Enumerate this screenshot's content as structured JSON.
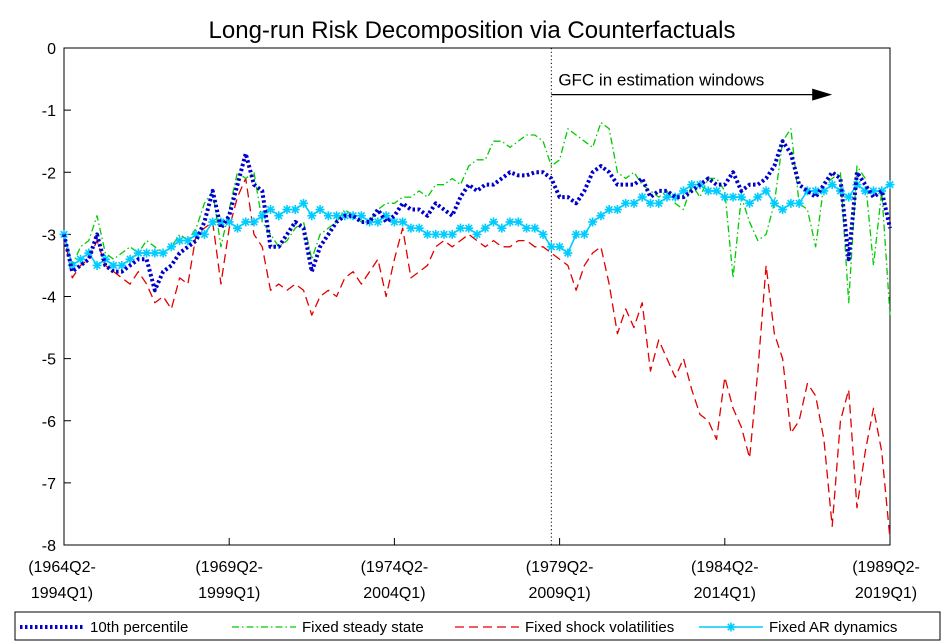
{
  "chart_data": {
    "type": "line",
    "title": "Long-run Risk Decomposition via Counterfactuals",
    "xlabel": "",
    "ylabel": "",
    "xlim": [
      0,
      100
    ],
    "ylim": [
      -8,
      0
    ],
    "yticks": [
      0,
      -1,
      -2,
      -3,
      -4,
      -5,
      -6,
      -7,
      -8
    ],
    "xticks": [
      {
        "x": 0,
        "line1": "(1964Q2-",
        "line2": "1994Q1)"
      },
      {
        "x": 20,
        "line1": "(1969Q2-",
        "line2": "1999Q1)"
      },
      {
        "x": 40,
        "line1": "(1974Q2-",
        "line2": "2004Q1)"
      },
      {
        "x": 60,
        "line1": "(1979Q2-",
        "line2": "2009Q1)"
      },
      {
        "x": 80,
        "line1": "(1984Q2-",
        "line2": "2014Q1)"
      },
      {
        "x": 100,
        "line1": "(1989Q2-",
        "line2": "2019Q1)"
      }
    ],
    "grid": false,
    "vline": {
      "x": 59,
      "style": "dotted"
    },
    "annotation": {
      "text": "GFC in estimation windows",
      "arrow_from_x": 59,
      "arrow_to_x": 93,
      "arrow_y": -0.75
    },
    "legend": {
      "placement": "bottom-outside"
    },
    "series": [
      {
        "name": "10th percentile",
        "color": "#0000cc",
        "style": "dotted-thick",
        "x": [
          0,
          1,
          2,
          3,
          4,
          5,
          6,
          7,
          8,
          9,
          10,
          11,
          12,
          13,
          14,
          15,
          16,
          17,
          18,
          19,
          20,
          21,
          22,
          23,
          24,
          25,
          26,
          27,
          28,
          29,
          30,
          31,
          32,
          33,
          34,
          35,
          36,
          37,
          38,
          39,
          40,
          41,
          42,
          43,
          44,
          45,
          46,
          47,
          48,
          49,
          50,
          51,
          52,
          53,
          54,
          55,
          56,
          57,
          58,
          59,
          60,
          61,
          62,
          63,
          64,
          65,
          66,
          67,
          68,
          69,
          70,
          71,
          72,
          73,
          74,
          75,
          76,
          77,
          78,
          79,
          80,
          81,
          82,
          83,
          84,
          85,
          86,
          87,
          88,
          89,
          90,
          91,
          92,
          93,
          94,
          95,
          96,
          97,
          98,
          99,
          100
        ],
        "y": [
          -3.0,
          -3.6,
          -3.5,
          -3.4,
          -3.0,
          -3.5,
          -3.6,
          -3.6,
          -3.5,
          -3.4,
          -3.4,
          -3.9,
          -3.6,
          -3.5,
          -3.3,
          -3.2,
          -3.1,
          -2.8,
          -2.3,
          -2.9,
          -2.7,
          -2.2,
          -1.7,
          -2.2,
          -2.3,
          -3.2,
          -3.2,
          -3.0,
          -2.8,
          -2.9,
          -3.6,
          -3.2,
          -3.0,
          -2.8,
          -2.7,
          -2.7,
          -2.8,
          -2.8,
          -2.6,
          -2.8,
          -2.7,
          -2.5,
          -2.6,
          -2.6,
          -2.7,
          -2.5,
          -2.6,
          -2.7,
          -2.4,
          -2.2,
          -2.3,
          -2.2,
          -2.2,
          -2.1,
          -2.0,
          -2.05,
          -2.05,
          -2.0,
          -2.0,
          -2.1,
          -2.4,
          -2.4,
          -2.5,
          -2.3,
          -2.0,
          -1.9,
          -2.0,
          -2.2,
          -2.2,
          -2.2,
          -2.1,
          -2.4,
          -2.3,
          -2.3,
          -2.4,
          -2.4,
          -2.3,
          -2.2,
          -2.1,
          -2.2,
          -2.2,
          -2.0,
          -2.3,
          -2.2,
          -2.2,
          -2.1,
          -1.9,
          -1.5,
          -1.7,
          -2.2,
          -2.3,
          -2.4,
          -2.2,
          -2.0,
          -2.1,
          -3.4,
          -2.0,
          -2.2,
          -2.4,
          -2.3,
          -2.9
        ]
      },
      {
        "name": "Fixed steady state",
        "color": "#00cc00",
        "style": "dash-dot",
        "x": [
          0,
          1,
          2,
          3,
          4,
          5,
          6,
          7,
          8,
          9,
          10,
          11,
          12,
          13,
          14,
          15,
          16,
          17,
          18,
          19,
          20,
          21,
          22,
          23,
          24,
          25,
          26,
          27,
          28,
          29,
          30,
          31,
          32,
          33,
          34,
          35,
          36,
          37,
          38,
          39,
          40,
          41,
          42,
          43,
          44,
          45,
          46,
          47,
          48,
          49,
          50,
          51,
          52,
          53,
          54,
          55,
          56,
          57,
          58,
          59,
          60,
          61,
          62,
          63,
          64,
          65,
          66,
          67,
          68,
          69,
          70,
          71,
          72,
          73,
          74,
          75,
          76,
          77,
          78,
          79,
          80,
          81,
          82,
          83,
          84,
          85,
          86,
          87,
          88,
          89,
          90,
          91,
          92,
          93,
          94,
          95,
          96,
          97,
          98,
          99,
          100
        ],
        "y": [
          -3.0,
          -3.5,
          -3.2,
          -3.1,
          -2.7,
          -3.3,
          -3.4,
          -3.3,
          -3.2,
          -3.3,
          -3.1,
          -3.2,
          -3.3,
          -3.2,
          -3.0,
          -3.1,
          -2.9,
          -2.5,
          -2.3,
          -3.2,
          -2.6,
          -2.0,
          -2.1,
          -2.0,
          -2.8,
          -3.0,
          -3.2,
          -3.1,
          -2.9,
          -2.8,
          -3.4,
          -3.0,
          -2.9,
          -2.8,
          -2.6,
          -2.7,
          -2.8,
          -2.8,
          -2.6,
          -2.5,
          -2.5,
          -2.4,
          -2.4,
          -2.3,
          -2.4,
          -2.2,
          -2.2,
          -2.1,
          -2.2,
          -1.9,
          -1.8,
          -1.8,
          -1.5,
          -1.5,
          -1.6,
          -1.5,
          -1.4,
          -1.4,
          -1.5,
          -1.9,
          -1.8,
          -1.3,
          -1.4,
          -1.5,
          -1.6,
          -1.2,
          -1.3,
          -2.0,
          -2.1,
          -2.0,
          -2.2,
          -2.3,
          -2.4,
          -2.3,
          -2.5,
          -2.6,
          -2.2,
          -2.4,
          -2.1,
          -2.1,
          -2.3,
          -3.7,
          -2.4,
          -2.8,
          -3.1,
          -3.0,
          -2.5,
          -1.5,
          -1.3,
          -2.5,
          -2.6,
          -3.2,
          -2.2,
          -2.1,
          -2.0,
          -4.1,
          -1.9,
          -2.1,
          -3.5,
          -2.3,
          -4.3
        ]
      },
      {
        "name": "Fixed shock volatilities",
        "color": "#e00000",
        "style": "dashed",
        "x": [
          0,
          1,
          2,
          3,
          4,
          5,
          6,
          7,
          8,
          9,
          10,
          11,
          12,
          13,
          14,
          15,
          16,
          17,
          18,
          19,
          20,
          21,
          22,
          23,
          24,
          25,
          26,
          27,
          28,
          29,
          30,
          31,
          32,
          33,
          34,
          35,
          36,
          37,
          38,
          39,
          40,
          41,
          42,
          43,
          44,
          45,
          46,
          47,
          48,
          49,
          50,
          51,
          52,
          53,
          54,
          55,
          56,
          57,
          58,
          59,
          60,
          61,
          62,
          63,
          64,
          65,
          66,
          67,
          68,
          69,
          70,
          71,
          72,
          73,
          74,
          75,
          76,
          77,
          78,
          79,
          80,
          81,
          82,
          83,
          84,
          85,
          86,
          87,
          88,
          89,
          90,
          91,
          92,
          93,
          94,
          95,
          96,
          97,
          98,
          99,
          100
        ],
        "y": [
          -3.0,
          -3.7,
          -3.5,
          -3.4,
          -3.1,
          -3.5,
          -3.6,
          -3.7,
          -3.8,
          -3.6,
          -3.8,
          -4.1,
          -4.0,
          -4.2,
          -3.7,
          -3.8,
          -3.0,
          -2.9,
          -2.8,
          -3.8,
          -2.9,
          -2.4,
          -2.1,
          -3.0,
          -3.2,
          -3.9,
          -3.8,
          -3.9,
          -3.8,
          -3.9,
          -4.3,
          -4.0,
          -3.9,
          -4.0,
          -3.7,
          -3.6,
          -3.8,
          -3.6,
          -3.4,
          -4.0,
          -3.4,
          -2.9,
          -3.7,
          -3.6,
          -3.5,
          -3.2,
          -3.1,
          -3.2,
          -3.1,
          -3.0,
          -3.1,
          -3.2,
          -3.1,
          -3.2,
          -3.2,
          -3.1,
          -3.1,
          -3.2,
          -3.2,
          -3.3,
          -3.4,
          -3.5,
          -3.9,
          -3.5,
          -3.3,
          -3.2,
          -3.8,
          -4.6,
          -4.2,
          -4.5,
          -4.1,
          -5.2,
          -4.7,
          -5.0,
          -5.3,
          -5.0,
          -5.5,
          -5.9,
          -6.0,
          -6.3,
          -5.3,
          -5.8,
          -6.1,
          -6.6,
          -5.2,
          -3.5,
          -4.6,
          -5.0,
          -6.2,
          -6.0,
          -5.4,
          -5.6,
          -6.3,
          -7.7,
          -6.0,
          -5.5,
          -7.4,
          -6.5,
          -5.8,
          -6.5,
          -7.9
        ]
      },
      {
        "name": "Fixed AR dynamics",
        "color": "#00ccff",
        "style": "solid-star",
        "x": [
          0,
          1,
          2,
          3,
          4,
          5,
          6,
          7,
          8,
          9,
          10,
          11,
          12,
          13,
          14,
          15,
          16,
          17,
          18,
          19,
          20,
          21,
          22,
          23,
          24,
          25,
          26,
          27,
          28,
          29,
          30,
          31,
          32,
          33,
          34,
          35,
          36,
          37,
          38,
          39,
          40,
          41,
          42,
          43,
          44,
          45,
          46,
          47,
          48,
          49,
          50,
          51,
          52,
          53,
          54,
          55,
          56,
          57,
          58,
          59,
          60,
          61,
          62,
          63,
          64,
          65,
          66,
          67,
          68,
          69,
          70,
          71,
          72,
          73,
          74,
          75,
          76,
          77,
          78,
          79,
          80,
          81,
          82,
          83,
          84,
          85,
          86,
          87,
          88,
          89,
          90,
          91,
          92,
          93,
          94,
          95,
          96,
          97,
          98,
          99,
          100
        ],
        "y": [
          -3.0,
          -3.5,
          -3.4,
          -3.3,
          -3.5,
          -3.4,
          -3.5,
          -3.5,
          -3.4,
          -3.3,
          -3.3,
          -3.3,
          -3.3,
          -3.2,
          -3.1,
          -3.1,
          -3.0,
          -3.0,
          -2.8,
          -2.8,
          -2.8,
          -2.9,
          -2.8,
          -2.8,
          -2.7,
          -2.6,
          -2.7,
          -2.6,
          -2.6,
          -2.5,
          -2.7,
          -2.6,
          -2.7,
          -2.7,
          -2.7,
          -2.7,
          -2.7,
          -2.8,
          -2.8,
          -2.7,
          -2.8,
          -2.8,
          -2.9,
          -2.9,
          -3.0,
          -3.0,
          -3.0,
          -3.0,
          -2.9,
          -2.9,
          -3.0,
          -2.9,
          -2.8,
          -2.9,
          -2.8,
          -2.8,
          -2.9,
          -2.9,
          -3.0,
          -3.2,
          -3.2,
          -3.3,
          -3.0,
          -3.0,
          -2.8,
          -2.7,
          -2.6,
          -2.6,
          -2.5,
          -2.5,
          -2.4,
          -2.5,
          -2.5,
          -2.4,
          -2.4,
          -2.3,
          -2.2,
          -2.2,
          -2.3,
          -2.3,
          -2.4,
          -2.4,
          -2.4,
          -2.5,
          -2.4,
          -2.3,
          -2.5,
          -2.6,
          -2.5,
          -2.5,
          -2.3,
          -2.3,
          -2.3,
          -2.2,
          -2.3,
          -2.4,
          -2.2,
          -2.3,
          -2.3,
          -2.3,
          -2.2
        ]
      }
    ]
  }
}
